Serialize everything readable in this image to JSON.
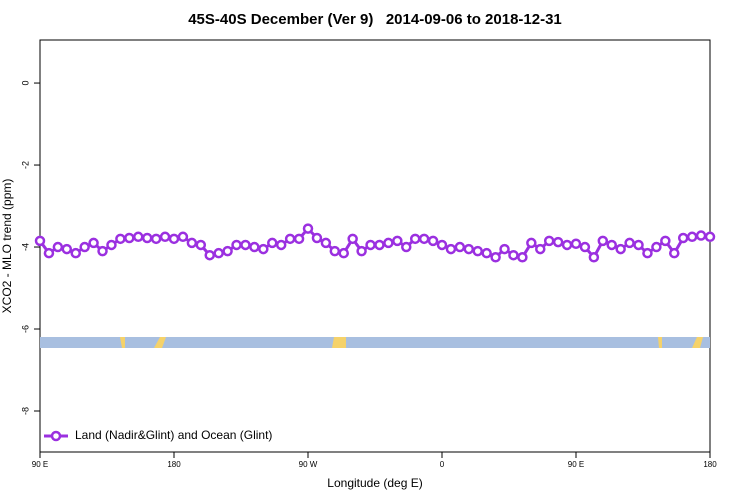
{
  "chart_data": {
    "type": "line",
    "title": "45S-40S December (Ver 9)   2014-09-06 to 2018-12-31",
    "x_label": "Longitude (deg E)",
    "y_label": "XCO2 - MLO trend (ppm)",
    "xlim": [
      90,
      540
    ],
    "xticks": [
      {
        "value": 90,
        "label": "90 E"
      },
      180,
      {
        "value": 270,
        "label": "90 W"
      },
      {
        "value": 360,
        "label": "0"
      },
      {
        "value": 450,
        "label": "90 E"
      },
      {
        "value": 540,
        "label": "180"
      }
    ],
    "ylim": [
      -9,
      1.05
    ],
    "yticks": [
      0,
      -2,
      -4,
      -6,
      -8
    ],
    "legend": "bottom-left",
    "x": [
      90,
      96,
      102,
      108,
      114,
      120,
      126,
      132,
      138,
      144,
      150,
      156,
      162,
      168,
      174,
      180,
      186,
      192,
      198,
      204,
      210,
      216,
      222,
      228,
      234,
      240,
      246,
      252,
      258,
      264,
      270,
      276,
      282,
      288,
      294,
      300,
      306,
      312,
      318,
      324,
      330,
      336,
      342,
      348,
      354,
      360,
      366,
      372,
      378,
      384,
      390,
      396,
      402,
      408,
      414,
      420,
      426,
      432,
      438,
      444,
      450,
      456,
      462,
      468,
      474,
      480,
      486,
      492,
      498,
      504,
      510,
      516,
      522,
      528,
      534,
      540
    ],
    "series": [
      {
        "name": "Land (Nadir&Glint) and Ocean (Glint)",
        "color": "#9b30e0",
        "values": [
          -3.85,
          -4.15,
          -4.0,
          -4.05,
          -4.15,
          -4.0,
          -3.9,
          -4.1,
          -3.95,
          -3.8,
          -3.78,
          -3.75,
          -3.78,
          -3.8,
          -3.75,
          -3.8,
          -3.75,
          -3.9,
          -3.95,
          -4.2,
          -4.15,
          -4.1,
          -3.95,
          -3.95,
          -4.0,
          -4.05,
          -3.9,
          -3.95,
          -3.8,
          -3.8,
          -3.55,
          -3.78,
          -3.9,
          -4.1,
          -4.15,
          -3.8,
          -4.1,
          -3.95,
          -3.95,
          -3.9,
          -3.85,
          -4.0,
          -3.8,
          -3.8,
          -3.85,
          -3.95,
          -4.05,
          -4.0,
          -4.05,
          -4.1,
          -4.15,
          -4.25,
          -4.05,
          -4.2,
          -4.25,
          -3.9,
          -4.05,
          -3.85,
          -3.88,
          -3.95,
          -3.92,
          -4.0,
          -4.25,
          -3.85,
          -3.95,
          -4.05,
          -3.9,
          -3.95,
          -4.15,
          -4.0,
          -3.85,
          -4.15,
          -3.78,
          -3.75,
          -3.72,
          -3.75
        ]
      }
    ]
  }
}
